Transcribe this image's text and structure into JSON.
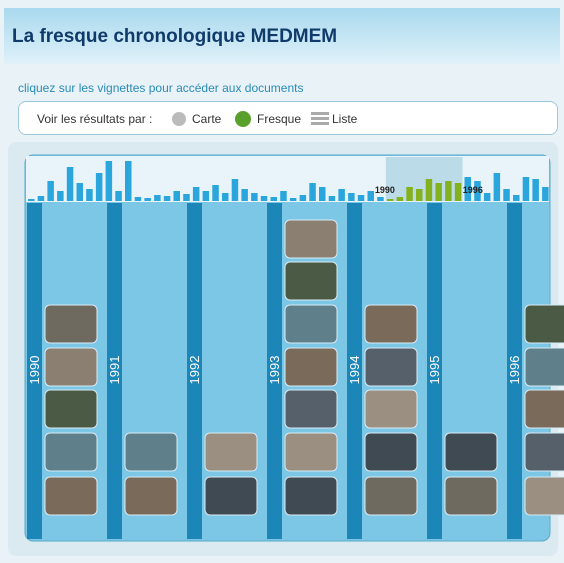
{
  "header": {
    "title": "La fresque chronologique MEDMEM"
  },
  "instruction": "cliquez sur les vignettes pour accéder aux documents",
  "view_bar": {
    "label": "Voir les résultats par :",
    "options": [
      "Carte",
      "Fresque",
      "Liste"
    ]
  },
  "histogram": {
    "values": [
      2,
      5,
      20,
      10,
      34,
      18,
      12,
      28,
      40,
      10,
      40,
      4,
      3,
      6,
      5,
      10,
      7,
      14,
      10,
      16,
      8,
      22,
      12,
      8,
      5,
      4,
      10,
      3,
      6,
      18,
      14,
      5,
      12,
      8,
      6,
      10,
      4,
      2,
      4,
      14,
      12,
      22,
      18,
      20,
      18,
      24,
      20,
      8,
      28,
      12,
      6,
      24,
      22,
      14
    ],
    "color": "#2aa6dc",
    "highlight_color": "#86b11e",
    "highlight": [
      37,
      44
    ],
    "range_labels": [
      "1990",
      "1996"
    ]
  },
  "years": [
    "1990",
    "1991",
    "1992",
    "1993",
    "1994",
    "1995",
    "1996"
  ]
}
